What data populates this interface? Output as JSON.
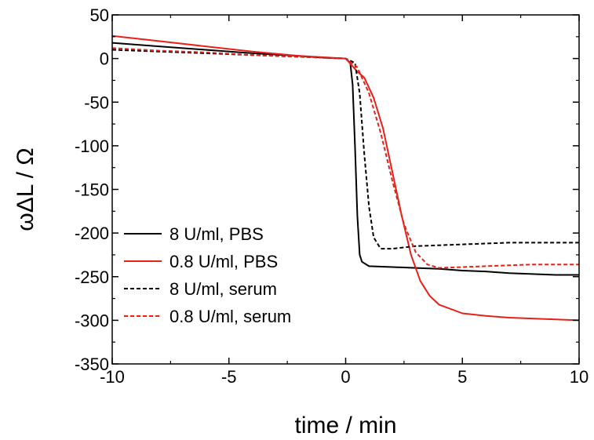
{
  "chart_data": {
    "type": "line",
    "title": "",
    "xlabel": "time / min",
    "ylabel": "ωΔL / Ω",
    "xlim": [
      -10,
      10
    ],
    "ylim": [
      -350,
      50
    ],
    "xticks": [
      -10,
      -5,
      0,
      5,
      10
    ],
    "yticks": [
      50,
      0,
      -50,
      -100,
      -150,
      -200,
      -250,
      -300,
      -350
    ],
    "grid": false,
    "legend_position": "lower-left",
    "series": [
      {
        "name": "8 U/ml, PBS",
        "color": "#000000",
        "dash": "solid",
        "x": [
          -10,
          -8,
          -6,
          -4,
          -2,
          -1,
          0,
          0.2,
          0.3,
          0.4,
          0.5,
          0.6,
          0.7,
          1,
          2,
          3,
          4,
          5,
          6,
          7,
          8,
          9,
          10
        ],
        "y": [
          18,
          14,
          10,
          6,
          3,
          1,
          0,
          -5,
          -30,
          -100,
          -180,
          -225,
          -233,
          -238,
          -239,
          -240,
          -241,
          -243,
          -244,
          -246,
          -247,
          -248,
          -248
        ]
      },
      {
        "name": "0.8 U/ml, PBS",
        "color": "#e8201a",
        "dash": "solid",
        "x": [
          -10,
          -8,
          -6,
          -4,
          -2,
          0,
          0.5,
          0.8,
          1.2,
          1.6,
          2.0,
          2.4,
          2.8,
          3.2,
          3.6,
          4,
          5,
          6,
          7,
          8,
          9,
          10
        ],
        "y": [
          26,
          20,
          14,
          8,
          3,
          0,
          -15,
          -22,
          -45,
          -80,
          -130,
          -180,
          -225,
          -255,
          -272,
          -282,
          -292,
          -295,
          -297,
          -298,
          -299,
          -300
        ]
      },
      {
        "name": "8 U/ml, serum",
        "color": "#000000",
        "dash": "dashed",
        "x": [
          -10,
          -8,
          -6,
          -4,
          -2,
          0,
          0.4,
          0.6,
          0.8,
          1.0,
          1.2,
          1.5,
          2,
          3,
          4,
          5,
          6,
          7,
          8,
          9,
          10
        ],
        "y": [
          10,
          8,
          6,
          4,
          2,
          0,
          -5,
          -40,
          -110,
          -170,
          -205,
          -218,
          -218,
          -215,
          -214,
          -213,
          -212,
          -211,
          -211,
          -211,
          -211
        ]
      },
      {
        "name": "0.8 U/ml, serum",
        "color": "#e8201a",
        "dash": "dashed",
        "x": [
          -10,
          -8,
          -6,
          -4,
          -2,
          0,
          0.5,
          1.0,
          1.5,
          2.0,
          2.5,
          3.0,
          3.5,
          4,
          5,
          6,
          7,
          8,
          9,
          10
        ],
        "y": [
          12,
          9,
          7,
          4,
          2,
          0,
          -10,
          -40,
          -85,
          -140,
          -190,
          -222,
          -236,
          -240,
          -239,
          -238,
          -237,
          -236,
          -236,
          -236
        ]
      }
    ]
  }
}
